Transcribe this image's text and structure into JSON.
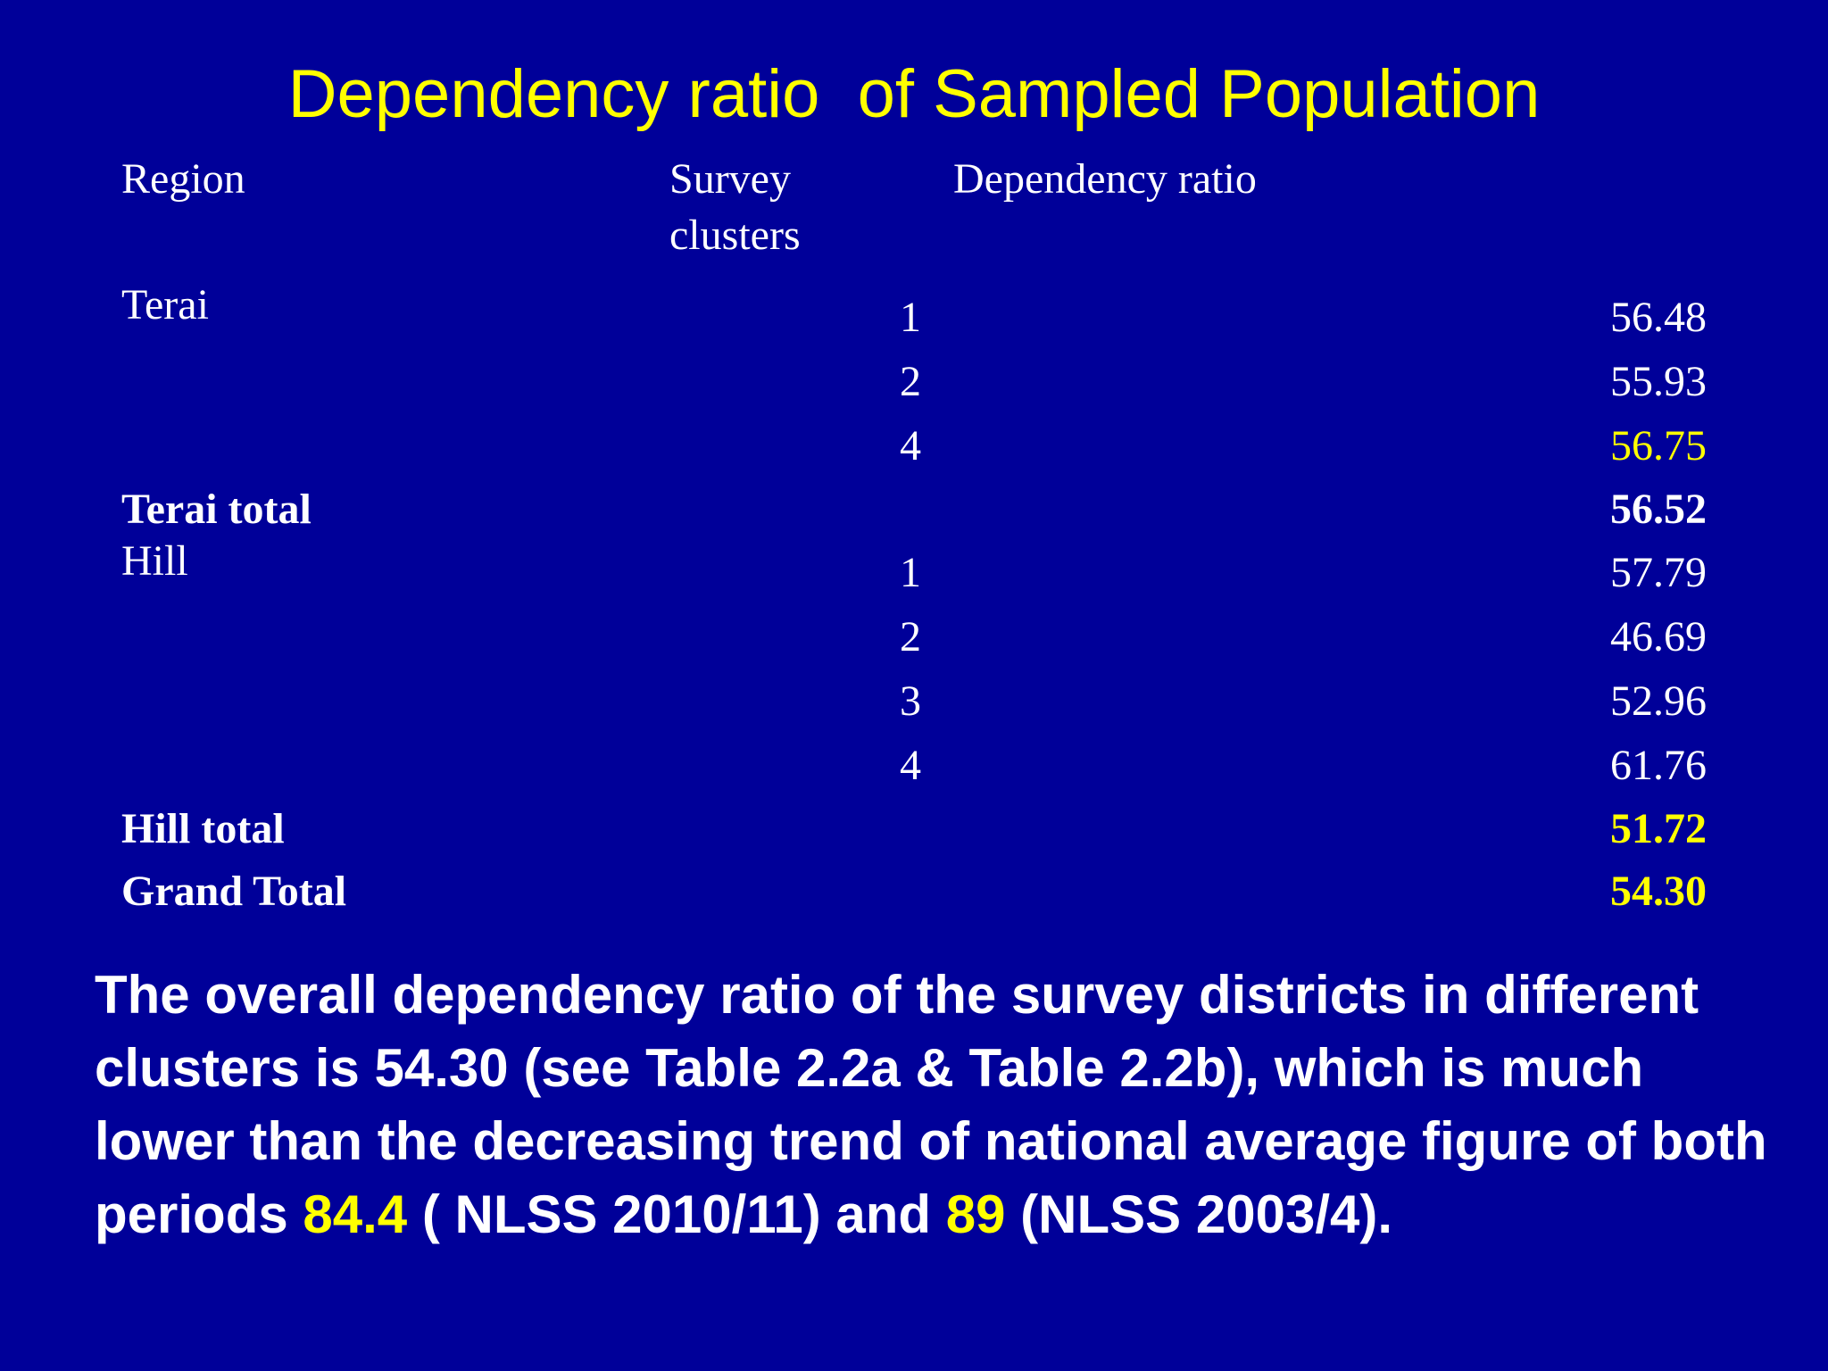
{
  "title": "Dependency ratio  of Sampled Population",
  "headers": {
    "region": "Region",
    "clusters_line1": "Survey",
    "clusters_line2": "clusters",
    "ratio": "Dependency ratio"
  },
  "rows": [
    {
      "region": "Terai",
      "cluster": "1",
      "ratio": "56.48"
    },
    {
      "region": "",
      "cluster": "2",
      "ratio": "55.93"
    },
    {
      "region": "",
      "cluster": "4",
      "ratio": "56.75"
    },
    {
      "region": "Terai total",
      "cluster": "",
      "ratio": "56.52"
    },
    {
      "region": "Hill",
      "cluster": "1",
      "ratio": "57.79"
    },
    {
      "region": "",
      "cluster": "2",
      "ratio": "46.69"
    },
    {
      "region": "",
      "cluster": "3",
      "ratio": "52.96"
    },
    {
      "region": "",
      "cluster": "4",
      "ratio": "61.76"
    },
    {
      "region": "Hill total",
      "cluster": "",
      "ratio": "51.72"
    },
    {
      "region": "Grand Total",
      "cluster": "",
      "ratio": "54.30"
    }
  ],
  "paragraph": {
    "part1": "The overall dependency ratio of the survey districts in different clusters is 54.30 (see Table 2.2a & Table 2.2b), which is much lower than the decreasing trend of national average figure of both periods ",
    "highlight1": "84.4",
    "part2": " ( NLSS 2010/11) and  ",
    "highlight2": "89",
    "part3": " (NLSS 2003/4)."
  },
  "colors": {
    "background": "#000099",
    "title": "#ffff00",
    "text": "#ffffff",
    "highlight": "#ffff00"
  }
}
